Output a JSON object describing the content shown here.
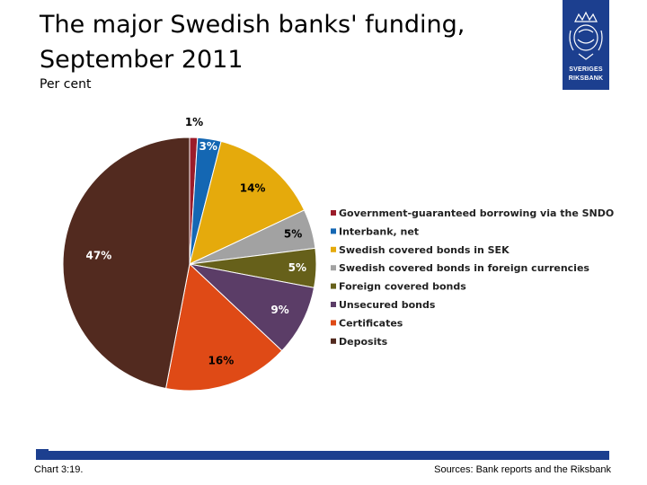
{
  "slide": {
    "title": "The major Swedish banks' funding, September 2011",
    "subtitle": "Per cent",
    "chart_number": "Chart 3:19.",
    "sources": "Sources: Bank reports and the Riksbank"
  },
  "logo": {
    "line1": "SVERIGES",
    "line2": "RIKSBANK",
    "color": "#1c3f8f"
  },
  "chart_data": {
    "type": "pie",
    "title": "",
    "legend_position": "right",
    "categories": [
      "Government-guaranteed borrowing via the SNDO",
      "Interbank, net",
      "Swedish covered bonds in SEK",
      "Swedish covered bonds in foreign currencies",
      "Foreign covered bonds",
      "Unsecured bonds",
      "Certificates",
      "Deposits"
    ],
    "values": [
      1,
      3,
      14,
      5,
      5,
      9,
      16,
      47
    ],
    "labels": [
      "1%",
      "3%",
      "14%",
      "5%",
      "5%",
      "9%",
      "16%",
      "47%"
    ],
    "colors": [
      "#9b1c2a",
      "#1467b3",
      "#e5aa0c",
      "#a2a2a2",
      "#66601a",
      "#5b3d67",
      "#df4a16",
      "#522a1f"
    ]
  }
}
